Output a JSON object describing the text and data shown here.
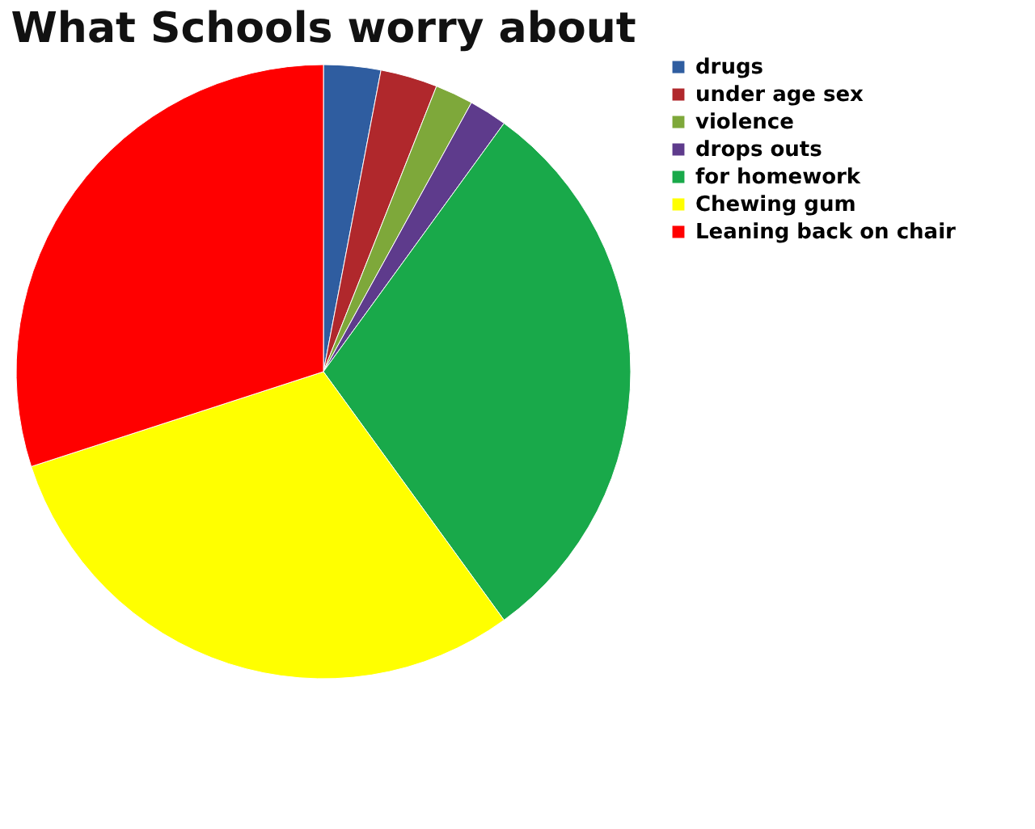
{
  "chart_data": {
    "type": "pie",
    "title": "What Schools worry about",
    "categories": [
      "drugs",
      "under age sex",
      "violence",
      "drops outs",
      "for homework",
      "Chewing gum",
      "Leaning back on chair"
    ],
    "values": [
      3,
      3,
      2,
      2,
      30,
      30,
      30
    ],
    "colors": [
      "#2f5da0",
      "#b0282c",
      "#7ea83a",
      "#5e3b8c",
      "#19a94a",
      "#ffff00",
      "#ff0000"
    ],
    "legend": "right"
  }
}
